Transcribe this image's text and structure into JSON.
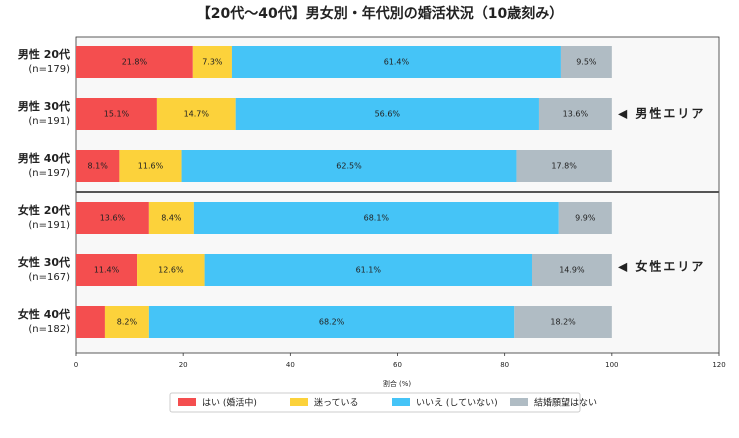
{
  "chart_data": {
    "type": "stacked-barh",
    "title": "【20代〜40代】男女別・年代別の婚活状況（10歳刻み）",
    "xlabel": "割合 (%)",
    "categories": [
      "男性 20代",
      "男性 30代",
      "男性 40代",
      "女性 20代",
      "女性 30代",
      "女性 40代"
    ],
    "sample_sizes": [
      "(n=179)",
      "(n=191)",
      "(n=197)",
      "(n=191)",
      "(n=167)",
      "(n=182)"
    ],
    "category_colors": [
      "#1f3f8f",
      "#1f3f8f",
      "#1f3f8f",
      "#c2185b",
      "#c2185b",
      "#c2185b"
    ],
    "series": [
      {
        "name": "はい (婚活中)",
        "color": "#f44e4f",
        "values": [
          21.8,
          15.1,
          8.1,
          13.6,
          11.4,
          5.4
        ],
        "value_labels": [
          "21.8%",
          "15.1%",
          "8.1%",
          "13.6%",
          "11.4%",
          null
        ]
      },
      {
        "name": "迷っている",
        "color": "#fcd23b",
        "values": [
          7.3,
          14.7,
          11.6,
          8.4,
          12.6,
          8.2
        ],
        "value_labels": [
          "7.3%",
          "14.7%",
          "11.6%",
          "8.4%",
          "12.6%",
          "8.2%"
        ]
      },
      {
        "name": "いいえ (していない)",
        "color": "#45c4f7",
        "values": [
          61.4,
          56.6,
          62.5,
          68.1,
          61.1,
          68.2
        ],
        "value_labels": [
          "61.4%",
          "56.6%",
          "62.5%",
          "68.1%",
          "61.1%",
          "68.2%"
        ]
      },
      {
        "name": "結婚願望はない",
        "color": "#b0bcc4",
        "values": [
          9.5,
          13.6,
          17.8,
          9.9,
          14.9,
          18.2
        ],
        "value_labels": [
          "9.5%",
          "13.6%",
          "17.8%",
          "9.9%",
          "14.9%",
          "18.2%"
        ]
      }
    ],
    "xlim": [
      0,
      120
    ],
    "xticks": [
      0,
      20,
      40,
      60,
      80,
      100,
      120
    ],
    "annotations": [
      {
        "text": "◀ 男性エリア",
        "color": "#1f3f8f"
      },
      {
        "text": "◀ 女性エリア",
        "color": "#c2185b"
      }
    ]
  }
}
